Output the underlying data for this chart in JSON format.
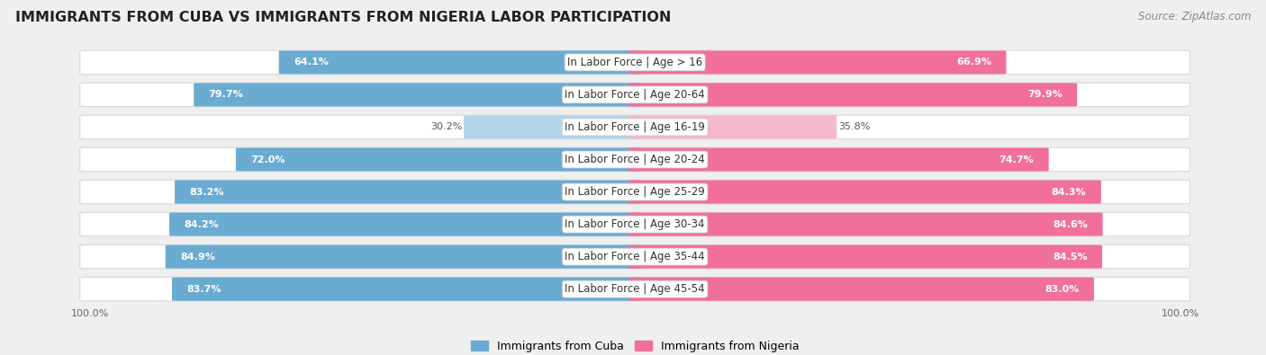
{
  "title": "IMMIGRANTS FROM CUBA VS IMMIGRANTS FROM NIGERIA LABOR PARTICIPATION",
  "source": "Source: ZipAtlas.com",
  "categories": [
    "In Labor Force | Age > 16",
    "In Labor Force | Age 20-64",
    "In Labor Force | Age 16-19",
    "In Labor Force | Age 20-24",
    "In Labor Force | Age 25-29",
    "In Labor Force | Age 30-34",
    "In Labor Force | Age 35-44",
    "In Labor Force | Age 45-54"
  ],
  "cuba_values": [
    64.1,
    79.7,
    30.2,
    72.0,
    83.2,
    84.2,
    84.9,
    83.7
  ],
  "nigeria_values": [
    66.9,
    79.9,
    35.8,
    74.7,
    84.3,
    84.6,
    84.5,
    83.0
  ],
  "cuba_color": "#6aabd2",
  "cuba_color_light": "#b3d4ea",
  "nigeria_color": "#f0709a",
  "nigeria_color_light": "#f5b8ce",
  "bg_color": "#efefef",
  "row_bg": "#ffffff",
  "row_border": "#d8d8d8",
  "max_value": 100.0,
  "legend_cuba": "Immigrants from Cuba",
  "legend_nigeria": "Immigrants from Nigeria",
  "label_fontsize": 8.5,
  "value_fontsize": 8.0,
  "title_fontsize": 11.5,
  "source_fontsize": 8.5
}
